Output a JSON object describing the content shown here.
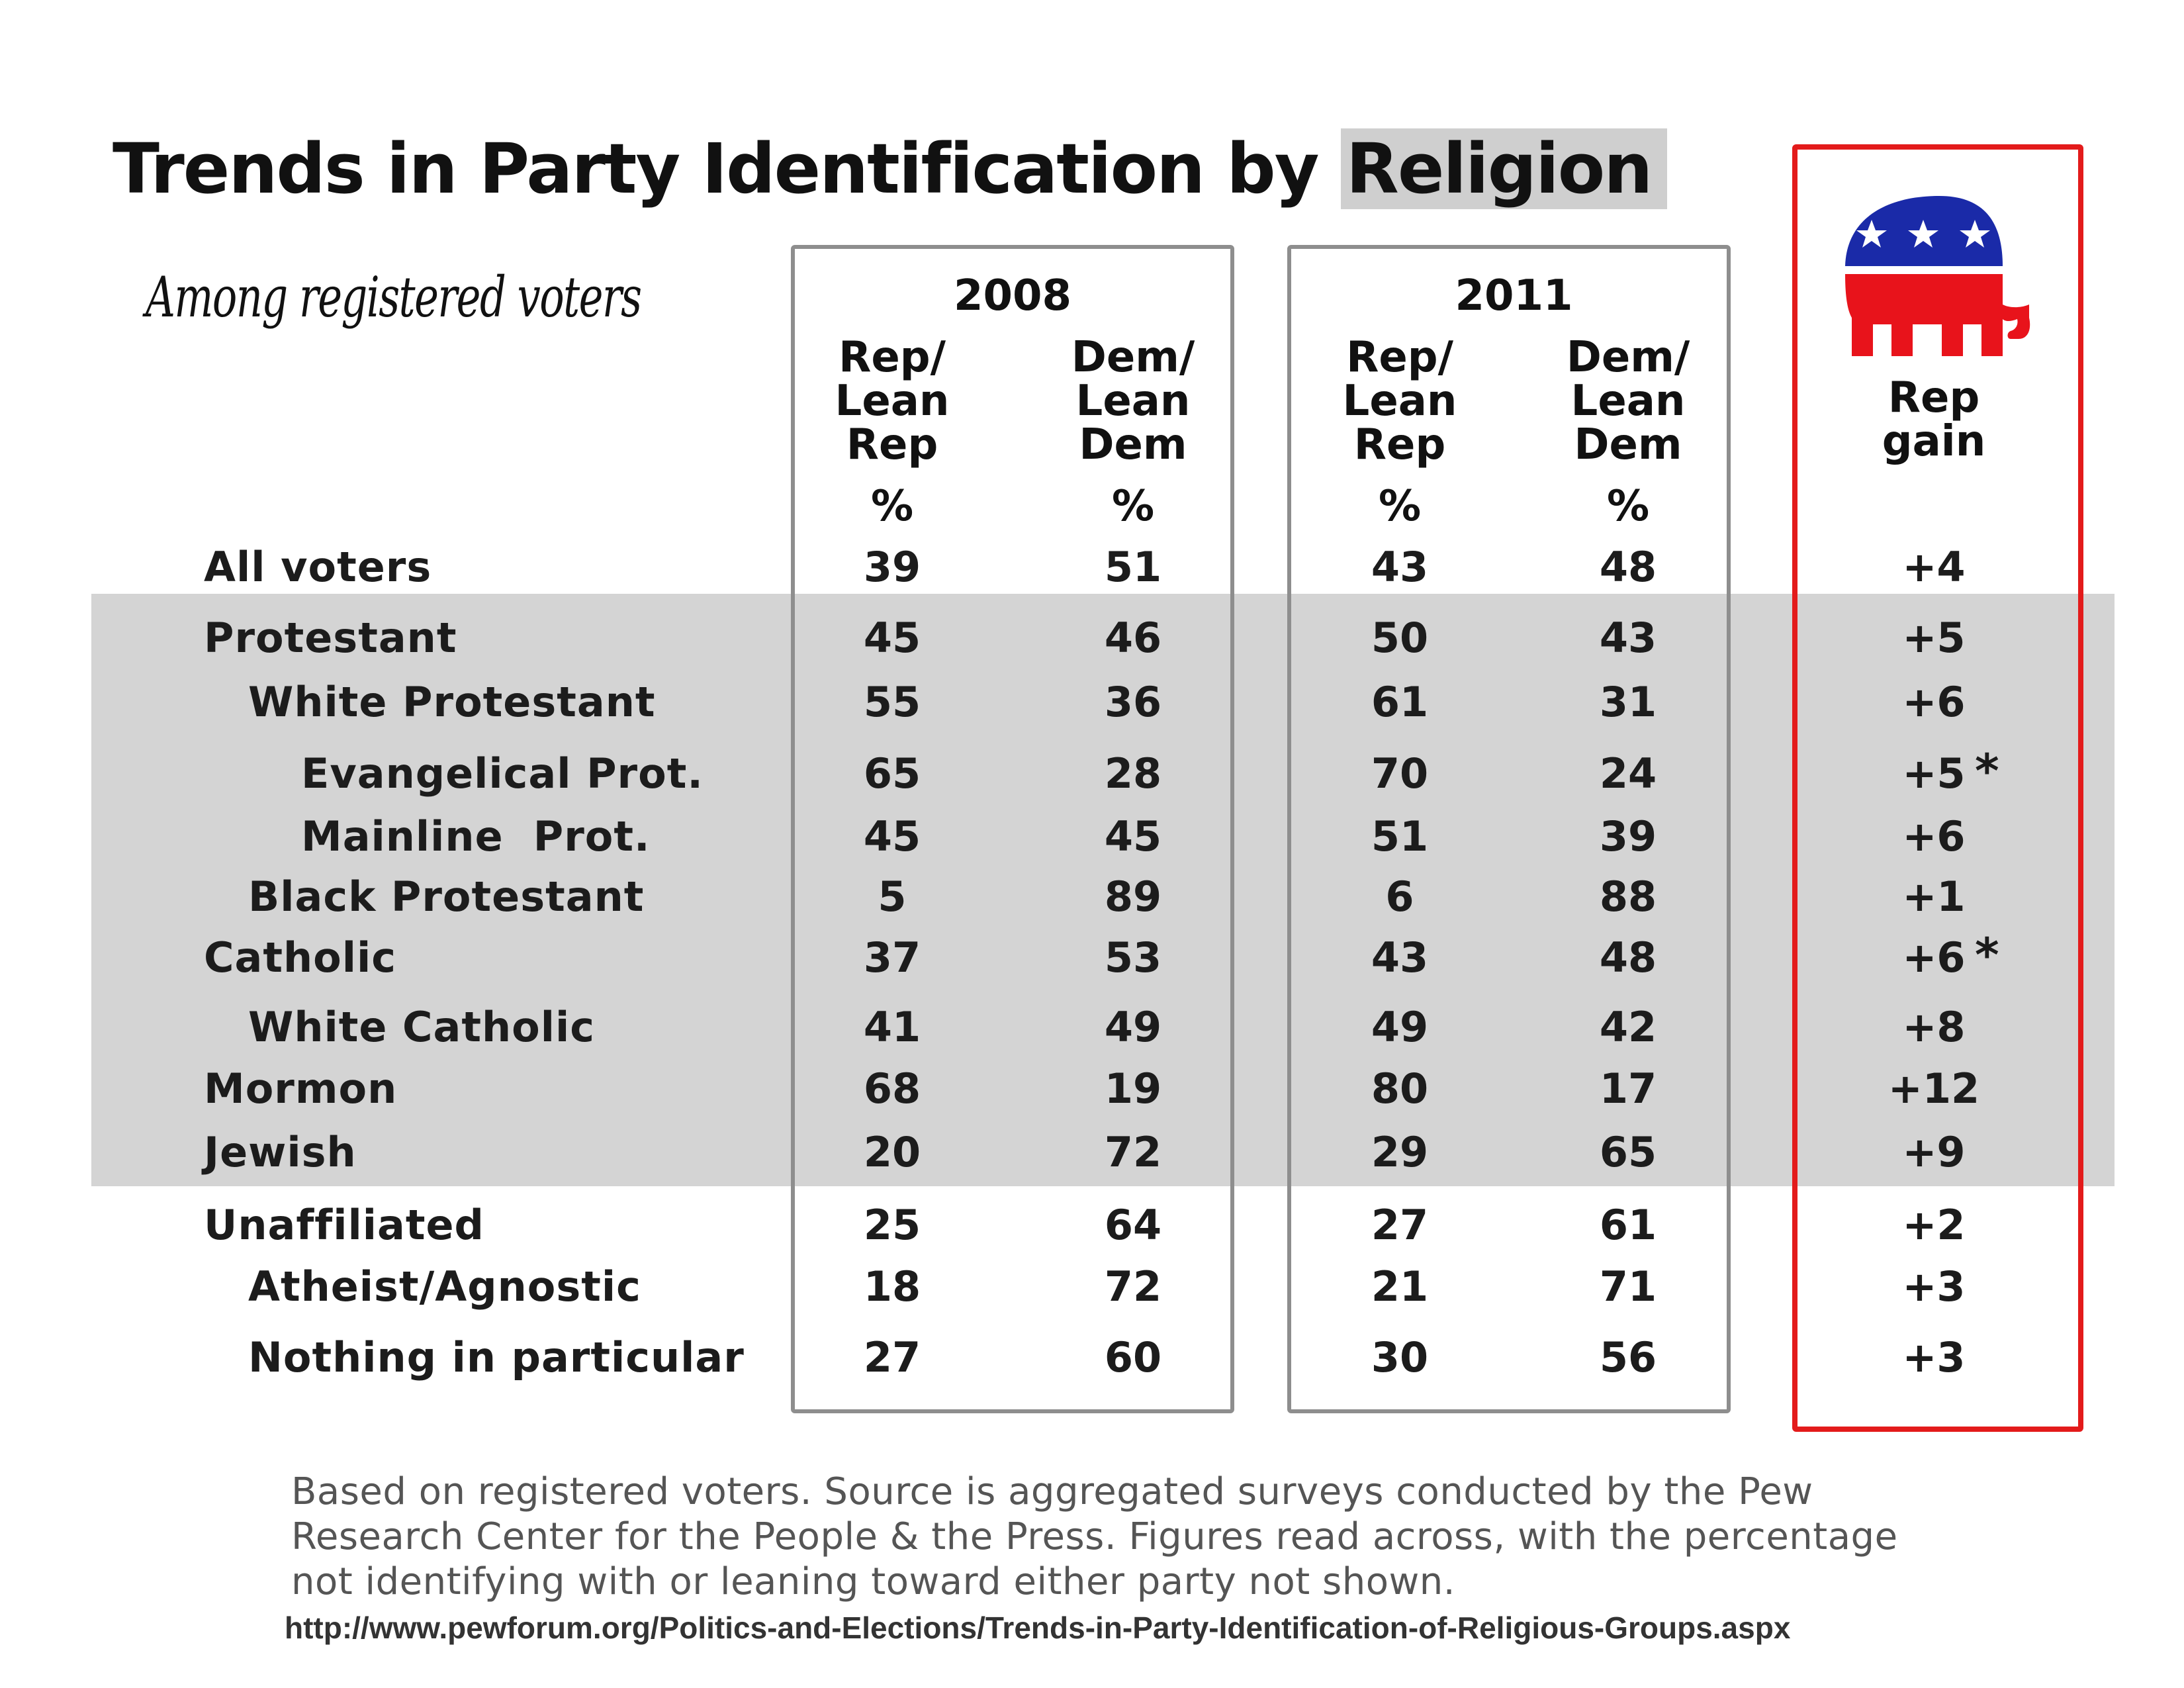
{
  "title_prefix": "Trends in Party Identification by ",
  "title_highlight": "Religion",
  "subtitle": "Among registered voters",
  "icon": "republican-elephant-icon",
  "colors": {
    "shade": "#d4d4d4",
    "box_border": "#8e8e8e",
    "red_box": "#e31b1b",
    "elephant_blue": "#1a2aa8",
    "elephant_red": "#e8131b"
  },
  "chart_data": {
    "type": "table",
    "title": "Trends in Party Identification by Religion",
    "subtitle": "Among registered voters",
    "years": [
      "2008",
      "2011"
    ],
    "columns": [
      "Rep/\nLean\nRep",
      "Dem/\nLean\nDem",
      "Rep/\nLean\nRep",
      "Dem/\nLean\nDem"
    ],
    "percent_sign": "%",
    "gain_header": "Rep\ngain",
    "rows": [
      {
        "label": "All voters",
        "indent": 0,
        "values": [
          "39",
          "51",
          "43",
          "48"
        ],
        "gain": "+4",
        "asterisk": ""
      },
      {
        "label": "Protestant",
        "indent": 0,
        "values": [
          "45",
          "46",
          "50",
          "43"
        ],
        "gain": "+5",
        "asterisk": ""
      },
      {
        "label": "White Protestant",
        "indent": 1,
        "values": [
          "55",
          "36",
          "61",
          "31"
        ],
        "gain": "+6",
        "asterisk": ""
      },
      {
        "label": "Evangelical Prot.",
        "indent": 2,
        "values": [
          "65",
          "28",
          "70",
          "24"
        ],
        "gain": "+5",
        "asterisk": "*"
      },
      {
        "label": "Mainline  Prot.",
        "indent": 2,
        "values": [
          "45",
          "45",
          "51",
          "39"
        ],
        "gain": "+6",
        "asterisk": ""
      },
      {
        "label": "Black Protestant",
        "indent": 1,
        "values": [
          "5",
          "89",
          "6",
          "88"
        ],
        "gain": "+1",
        "asterisk": ""
      },
      {
        "label": "Catholic",
        "indent": 0,
        "values": [
          "37",
          "53",
          "43",
          "48"
        ],
        "gain": "+6",
        "asterisk": "*"
      },
      {
        "label": "White Catholic",
        "indent": 1,
        "values": [
          "41",
          "49",
          "49",
          "42"
        ],
        "gain": "+8",
        "asterisk": ""
      },
      {
        "label": "Mormon",
        "indent": 0,
        "values": [
          "68",
          "19",
          "80",
          "17"
        ],
        "gain": "+12",
        "asterisk": ""
      },
      {
        "label": "Jewish",
        "indent": 0,
        "values": [
          "20",
          "72",
          "29",
          "65"
        ],
        "gain": "+9",
        "asterisk": ""
      },
      {
        "label": "Unaffiliated",
        "indent": 0,
        "values": [
          "25",
          "64",
          "27",
          "61"
        ],
        "gain": "+2",
        "asterisk": ""
      },
      {
        "label": "Atheist/Agnostic",
        "indent": 1,
        "values": [
          "18",
          "72",
          "21",
          "71"
        ],
        "gain": "+3",
        "asterisk": ""
      },
      {
        "label": "Nothing in particular",
        "indent": 1,
        "values": [
          "27",
          "60",
          "30",
          "56"
        ],
        "gain": "+3",
        "asterisk": ""
      }
    ]
  },
  "footnote": [
    "Based on registered voters. Source is aggregated surveys conducted by the Pew",
    "Research Center for the People & the Press. Figures read across, with the percentage",
    "not identifying with or leaning toward either party not shown."
  ],
  "source_url": "http://www.pewforum.org/Politics-and-Elections/Trends-in-Party-Identification-of-Religious-Groups.aspx"
}
